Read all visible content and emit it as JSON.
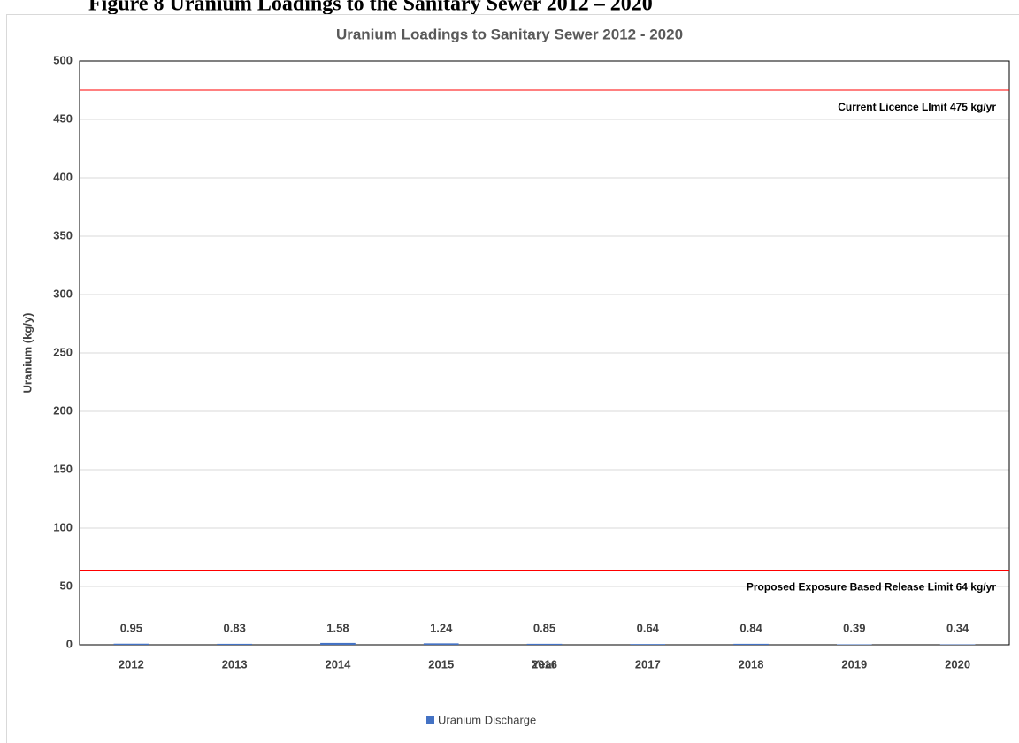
{
  "caption": "Figure 8 Uranium Loadings to the Sanitary Sewer 2012 – 2020",
  "chart_data": {
    "type": "bar",
    "title": "Uranium Loadings to Sanitary Sewer 2012 - 2020",
    "x_label": "Year",
    "y_label": "Uranium (kg/y)",
    "categories": [
      "2012",
      "2013",
      "2014",
      "2015",
      "2016",
      "2017",
      "2018",
      "2019",
      "2020"
    ],
    "series": [
      {
        "name": "Uranium Discharge",
        "color": "#4472c4",
        "values": [
          0.95,
          0.83,
          1.58,
          1.24,
          0.85,
          0.64,
          0.84,
          0.39,
          0.34
        ]
      }
    ],
    "ylim": [
      0,
      500
    ],
    "yticks": [
      0,
      50,
      100,
      150,
      200,
      250,
      300,
      350,
      400,
      450,
      500
    ],
    "grid": true,
    "reference_lines": [
      {
        "value": 475,
        "label": "Current Licence LImit 475 kg/yr",
        "color": "#ff0000"
      },
      {
        "value": 64,
        "label": "Proposed Exposure Based Release Limit 64 kg/yr",
        "color": "#ff0000"
      }
    ],
    "legend": "bottom"
  }
}
